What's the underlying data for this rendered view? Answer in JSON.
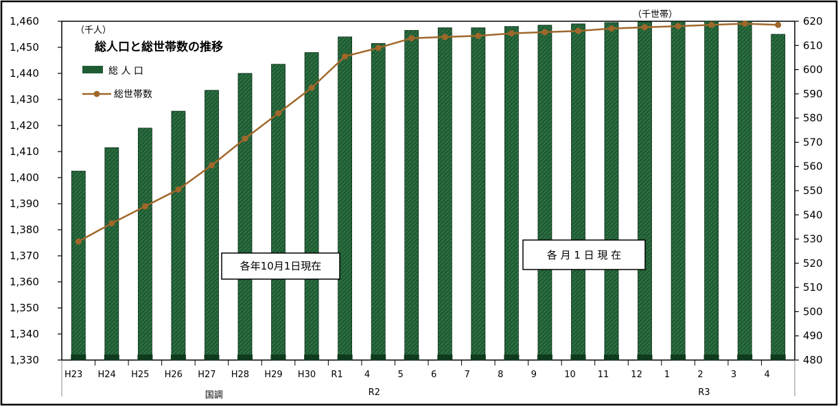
{
  "chart_data": {
    "type": "bar",
    "title": "総人口と総世帯数の推移",
    "unit_left": "（千人）",
    "unit_right": "（千世帯）",
    "categories": [
      "H23",
      "H24",
      "H25",
      "H26",
      "H27",
      "H28",
      "H29",
      "H30",
      "R1",
      "4",
      "5",
      "6",
      "7",
      "8",
      "9",
      "10",
      "11",
      "12",
      "1",
      "2",
      "3",
      "4"
    ],
    "groups": [
      "国調",
      "R2",
      "R3"
    ],
    "ylim_left": [
      1330,
      1460
    ],
    "yticks_left": [
      "1,330",
      "1,340",
      "1,350",
      "1,360",
      "1,370",
      "1,380",
      "1,390",
      "1,400",
      "1,410",
      "1,420",
      "1,430",
      "1,440",
      "1,450",
      "1,460"
    ],
    "ylim_right": [
      480,
      620
    ],
    "yticks_right": [
      "480",
      "490",
      "500",
      "510",
      "520",
      "530",
      "540",
      "550",
      "560",
      "570",
      "580",
      "590",
      "600",
      "610",
      "620"
    ],
    "series": [
      {
        "name": "総 人 口",
        "type": "bar",
        "axis": "left",
        "color": "#1f5b33",
        "values": [
          1402.5,
          1411.5,
          1419,
          1425.5,
          1433.5,
          1440,
          1443.5,
          1448,
          1454,
          1451.5,
          1456.5,
          1457.5,
          1457.5,
          1458,
          1458.5,
          1459,
          1459.5,
          1459.8,
          1459.9,
          1460,
          1460,
          1455
        ]
      },
      {
        "name": "総世帯数",
        "type": "line",
        "axis": "right",
        "color": "#a0672a",
        "values": [
          529,
          536.5,
          543.5,
          550.5,
          560.5,
          571.5,
          582,
          592.5,
          605.5,
          609,
          613,
          613.5,
          614,
          615,
          615.5,
          616,
          617,
          617.5,
          618,
          618.5,
          619,
          618.5
        ]
      }
    ],
    "annotations": [
      "各年10月1日現在",
      "各 月 1 日 現 在"
    ]
  }
}
